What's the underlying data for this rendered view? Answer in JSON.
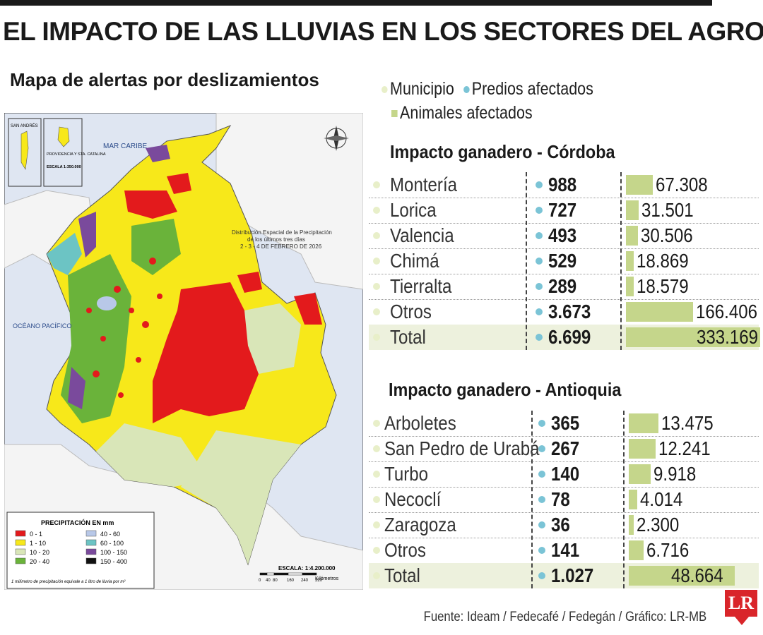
{
  "title": "EL IMPACTO DE LAS LLUVIAS EN LOS SECTORES DEL AGRO",
  "map": {
    "title": "Mapa de alertas por deslizamientos",
    "sea_caribe": "MAR CARIBE",
    "ocean_pacifico": "OCÉANO PACÍFICO",
    "inset_san_andres": "SAN ANDRÉS",
    "inset_providencia": "PROVIDENCIA Y STA. CATALINA",
    "inset_scale": "ESCALA 1:350.000",
    "distribution_title": "Distribución Espacial de la Precipitación",
    "distribution_sub1": "de los últimos tres días",
    "distribution_sub2": "2 - 3 - 4  DE FEBRERO DE 2026",
    "legend_title": "PRECIPITACIÓN EN mm",
    "legend_items": [
      {
        "label": "0 - 1",
        "color": "#e31a1c"
      },
      {
        "label": "1 - 10",
        "color": "#f7e81a"
      },
      {
        "label": "10 - 20",
        "color": "#d9e6b8"
      },
      {
        "label": "20 - 40",
        "color": "#6ab33a"
      },
      {
        "label": "40 - 60",
        "color": "#b8c8e8"
      },
      {
        "label": "60 - 100",
        "color": "#6cc4c4"
      },
      {
        "label": "100 - 150",
        "color": "#7a4a9c"
      },
      {
        "label": "150 - 400",
        "color": "#111111"
      }
    ],
    "legend_note": "1 milímetro de precipitación equivale a 1 litro de lluvia por m²",
    "scale_label": "ESCALA: 1:4.200.000",
    "scale_ticks": [
      "0",
      "40",
      "80",
      "160",
      "240",
      "320"
    ],
    "scale_unit": "Kilómetros"
  },
  "legend": {
    "municipio": {
      "label": "Municipio",
      "color": "#e8efc9"
    },
    "predios": {
      "label": "Predios afectados",
      "color": "#7bc4d6"
    },
    "animales": {
      "label": "Animales afectados",
      "color": "#c5d68b"
    }
  },
  "cordoba": {
    "title": "Impacto ganadero - Córdoba",
    "max": 333169,
    "rows": [
      {
        "municipio": "Montería",
        "predios": "988",
        "animales": "67.308",
        "value": 67308
      },
      {
        "municipio": "Lorica",
        "predios": "727",
        "animales": "31.501",
        "value": 31501
      },
      {
        "municipio": "Valencia",
        "predios": "493",
        "animales": "30.506",
        "value": 30506
      },
      {
        "municipio": "Chimá",
        "predios": "529",
        "animales": "18.869",
        "value": 18869
      },
      {
        "municipio": "Tierralta",
        "predios": "289",
        "animales": "18.579",
        "value": 18579
      },
      {
        "municipio": "Otros",
        "predios": "3.673",
        "animales": "166.406",
        "value": 166406
      },
      {
        "municipio": "Total",
        "predios": "6.699",
        "animales": "333.169",
        "value": 333169
      }
    ]
  },
  "antioquia": {
    "title": "Impacto ganadero - Antioquia",
    "max": 48664,
    "rows": [
      {
        "municipio": "Arboletes",
        "predios": "365",
        "animales": "13.475",
        "value": 13475
      },
      {
        "municipio": "San Pedro de Urabá",
        "predios": "267",
        "animales": "12.241",
        "value": 12241
      },
      {
        "municipio": "Turbo",
        "predios": "140",
        "animales": "9.918",
        "value": 9918
      },
      {
        "municipio": "Necoclí",
        "predios": "78",
        "animales": "4.014",
        "value": 4014
      },
      {
        "municipio": "Zaragoza",
        "predios": "36",
        "animales": "2.300",
        "value": 2300
      },
      {
        "municipio": "Otros",
        "predios": "141",
        "animales": "6.716",
        "value": 6716
      },
      {
        "municipio": "Total",
        "predios": "1.027",
        "animales": "48.664",
        "value": 48664
      }
    ]
  },
  "source": "Fuente: Ideam / Fedecafé / Fedegán / Gráfico: LR-MB",
  "logo": "LR"
}
